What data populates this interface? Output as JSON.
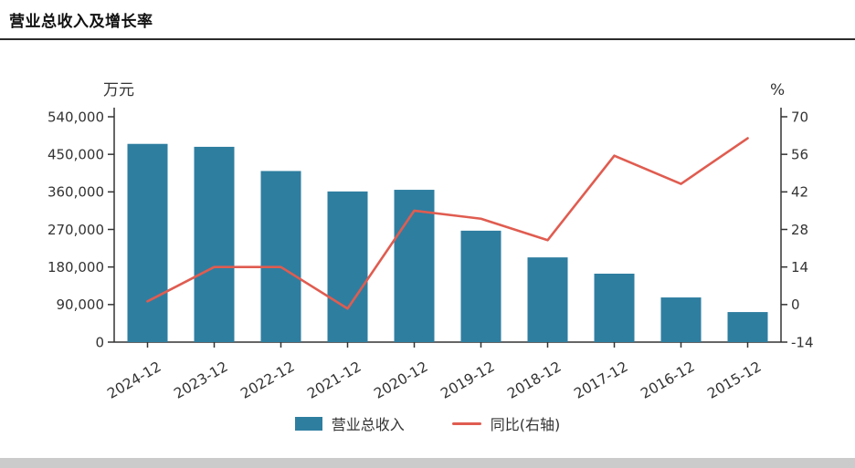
{
  "page": {
    "title": "营业总收入及增长率"
  },
  "chart_data": {
    "type": "bar",
    "subtype": "bar+line combo",
    "categories": [
      "2024-12",
      "2023-12",
      "2022-12",
      "2021-12",
      "2020-12",
      "2019-12",
      "2018-12",
      "2017-12",
      "2016-12",
      "2015-12"
    ],
    "series": [
      {
        "name": "营业总收入",
        "type": "bar",
        "axis": "left",
        "values": [
          475000,
          468000,
          410000,
          361000,
          365000,
          267000,
          203000,
          164000,
          107000,
          72000
        ]
      },
      {
        "name": "同比(右轴)",
        "type": "line",
        "axis": "right",
        "values": [
          1.2,
          14,
          14,
          -1.5,
          35,
          32,
          24,
          55.5,
          45,
          62
        ]
      }
    ],
    "left_axis": {
      "label": "万元",
      "min": 0,
      "max": 540000,
      "ticks": [
        0,
        90000,
        180000,
        270000,
        360000,
        450000,
        540000
      ]
    },
    "right_axis": {
      "label": "%",
      "min": -14,
      "max": 70,
      "ticks": [
        -14,
        0,
        14,
        28,
        42,
        56,
        70
      ]
    },
    "colors": {
      "bar": "#2e7ea0",
      "line": "#e05c50",
      "axis": "#333333"
    },
    "grid": false,
    "legend_position": "bottom"
  }
}
